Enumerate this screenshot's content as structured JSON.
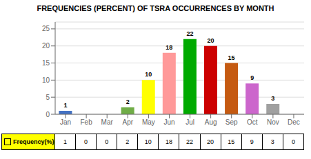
{
  "chart_data": {
    "type": "bar",
    "title": "FREQUENCIES (PERCENT) OF TSRA OCCURRENCES BY MONTH",
    "categories": [
      "Jan",
      "Feb",
      "Mar",
      "Apr",
      "May",
      "Jun",
      "Jul",
      "Aug",
      "Sep",
      "Oct",
      "Nov",
      "Dec"
    ],
    "values": [
      1,
      0,
      0,
      2,
      10,
      18,
      22,
      20,
      15,
      9,
      3,
      0
    ],
    "colors": [
      "#4472C4",
      "#808080",
      "#FF6600",
      "#70AD47",
      "#FFFF00",
      "#FF9999",
      "#00AA00",
      "#CC0000",
      "#C55A11",
      "#CC66CC",
      "#A0A0A0",
      "#4472C4"
    ],
    "ylim": [
      0,
      27
    ],
    "yticks": [
      0,
      5,
      10,
      15,
      20,
      25
    ],
    "grid": true,
    "data_labels": true,
    "table": {
      "label": "Frequency(%)",
      "color": "#FFFF00",
      "values": [
        1,
        0,
        0,
        2,
        10,
        18,
        22,
        20,
        15,
        9,
        3,
        0
      ]
    }
  }
}
